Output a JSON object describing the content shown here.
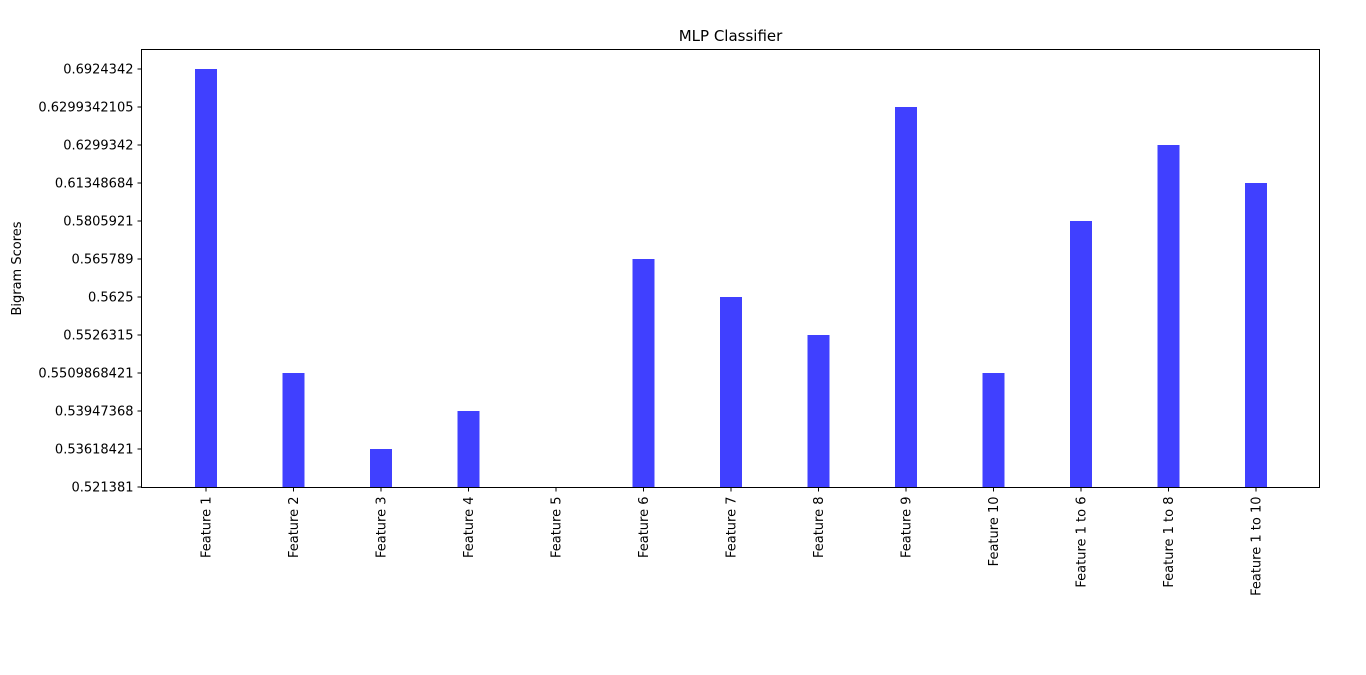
{
  "chart_data": {
    "type": "bar",
    "title": "MLP Classifier",
    "xlabel": "",
    "ylabel": "Bigram Scores",
    "categories": [
      "Feature 1",
      "Feature 2",
      "Feature 3",
      "Feature 4",
      "Feature 5",
      "Feature 6",
      "Feature 7",
      "Feature 8",
      "Feature 9",
      "Feature 10",
      "Feature 1 to 6",
      "Feature 1 to 8",
      "Feature 1 to 10"
    ],
    "values": [
      "0.6924342",
      "0.5509868421",
      "0.53618421",
      "0.53947368",
      "0.521381",
      "0.565789",
      "0.5625",
      "0.5526315",
      "0.6299342105",
      "0.5509868421",
      "0.5805921",
      "0.6299342",
      "0.61348684"
    ],
    "y_tick_labels": [
      "0.521381",
      "0.53618421",
      "0.53947368",
      "0.5509868421",
      "0.5526315",
      "0.5625",
      "0.565789",
      "0.5805921",
      "0.61348684",
      "0.6299342",
      "0.6299342105",
      "0.6924342"
    ],
    "y_axis_scale": "categorical (ordered string labels, evenly spaced)",
    "bar_color": "#4040ff",
    "grid": false,
    "legend": "none"
  }
}
